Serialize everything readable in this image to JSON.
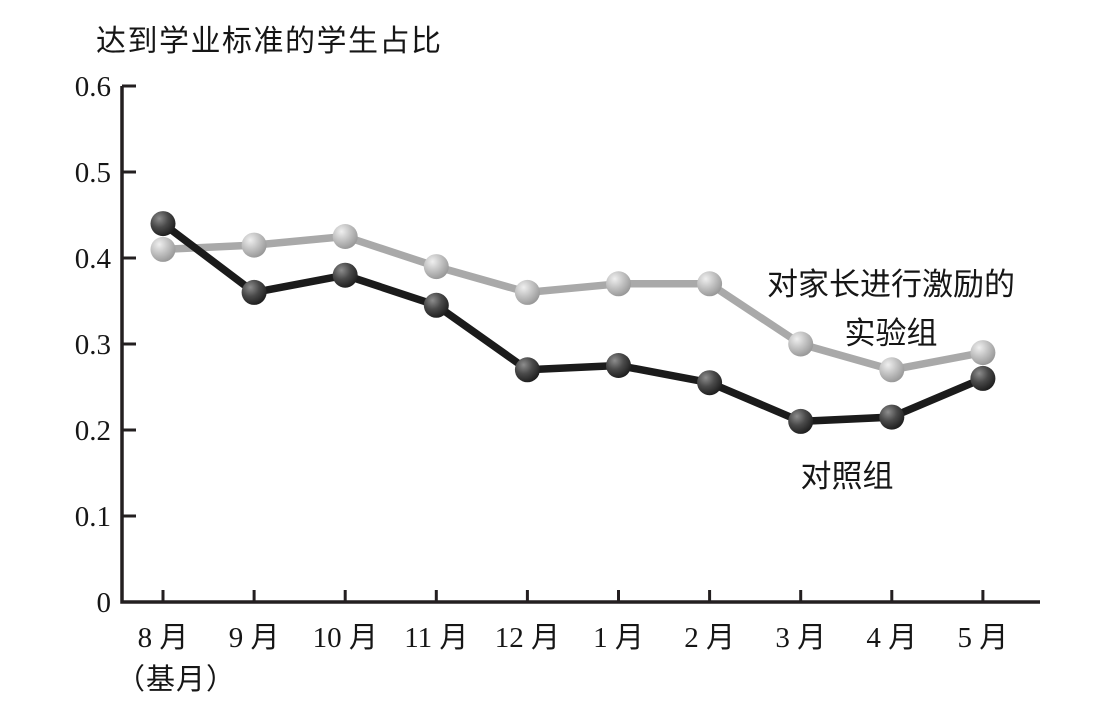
{
  "title": "达到学业标准的学生占比",
  "chart_data": {
    "type": "line",
    "title": "达到学业标准的学生占比",
    "categories": [
      "8 月",
      "9 月",
      "10 月",
      "11 月",
      "12 月",
      "1 月",
      "2 月",
      "3 月",
      "4 月",
      "5 月"
    ],
    "x_base_note": "（基月）",
    "xlabel": "",
    "ylabel": "达到学业标准的学生占比",
    "ylim": [
      0,
      0.6
    ],
    "ytick_labels": [
      "0",
      "0.1",
      "0.2",
      "0.3",
      "0.4",
      "0.5",
      "0.6"
    ],
    "ytick_values": [
      0,
      0.1,
      0.2,
      0.3,
      0.4,
      0.5,
      0.6
    ],
    "grid": false,
    "legend_position": "annotations beside lines",
    "axis_color": "#231f20",
    "series": [
      {
        "name": "对家长进行激励的实验组",
        "annotation_lines": [
          "对家长进行激励的",
          "实验组"
        ],
        "line_color": "#a9a9a9",
        "marker_gradient": [
          "#efefef",
          "#c3c3c3",
          "#8f8f8f"
        ],
        "values": [
          0.41,
          0.415,
          0.425,
          0.39,
          0.36,
          0.37,
          0.37,
          0.3,
          0.27,
          0.29
        ]
      },
      {
        "name": "对照组",
        "annotation_lines": [
          "对照组"
        ],
        "line_color": "#1b1b1b",
        "marker_gradient": [
          "#8d8d8d",
          "#4a4a4a",
          "#151515"
        ],
        "values": [
          0.44,
          0.36,
          0.38,
          0.345,
          0.27,
          0.275,
          0.255,
          0.21,
          0.215,
          0.26
        ]
      }
    ]
  }
}
